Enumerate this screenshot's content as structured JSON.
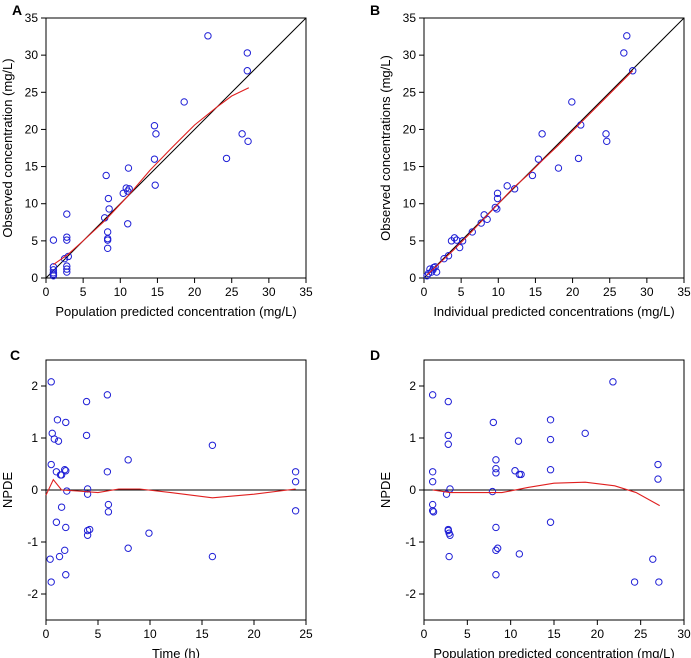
{
  "chart_data": [
    {
      "panel": "A",
      "type": "scatter",
      "xlabel": "Population predicted concentration (mg/L)",
      "ylabel": "Observed concentration (mg/L)",
      "xlim": [
        0,
        35
      ],
      "ylim": [
        0,
        35
      ],
      "xticks": [
        0,
        5,
        10,
        15,
        20,
        25,
        30,
        35
      ],
      "yticks": [
        0,
        5,
        10,
        15,
        20,
        25,
        30,
        35
      ],
      "identity_line": true,
      "points": [
        [
          1,
          5.1
        ],
        [
          1,
          1.5
        ],
        [
          1,
          1.1
        ],
        [
          1,
          0.7
        ],
        [
          1,
          0.5
        ],
        [
          1,
          0.3
        ],
        [
          2.5,
          2.6
        ],
        [
          2.8,
          8.6
        ],
        [
          2.8,
          5.5
        ],
        [
          2.8,
          5.1
        ],
        [
          2.8,
          1.6
        ],
        [
          2.8,
          1.2
        ],
        [
          2.8,
          0.8
        ],
        [
          3,
          2.9
        ],
        [
          7.9,
          8.1
        ],
        [
          8.1,
          13.8
        ],
        [
          8.3,
          6.2
        ],
        [
          8.3,
          5.3
        ],
        [
          8.3,
          5.1
        ],
        [
          8.3,
          4.0
        ],
        [
          8.4,
          10.7
        ],
        [
          8.5,
          9.3
        ],
        [
          10.4,
          11.4
        ],
        [
          10.8,
          12.1
        ],
        [
          11,
          11.7
        ],
        [
          11,
          7.3
        ],
        [
          11.1,
          14.8
        ],
        [
          11.2,
          12.0
        ],
        [
          14.6,
          20.5
        ],
        [
          14.6,
          16.0
        ],
        [
          14.7,
          12.5
        ],
        [
          14.8,
          19.4
        ],
        [
          18.6,
          23.7
        ],
        [
          21.8,
          32.6
        ],
        [
          24.3,
          16.1
        ],
        [
          26.4,
          19.4
        ],
        [
          27.1,
          30.3
        ],
        [
          27.1,
          27.9
        ],
        [
          27.2,
          18.4
        ]
      ],
      "smooth": [
        [
          1,
          1.8
        ],
        [
          3,
          3.2
        ],
        [
          5,
          5.0
        ],
        [
          8,
          7.8
        ],
        [
          11,
          11.0
        ],
        [
          14,
          14.5
        ],
        [
          17,
          17.6
        ],
        [
          20,
          20.6
        ],
        [
          23,
          23.0
        ],
        [
          25,
          24.5
        ],
        [
          27.3,
          25.6
        ]
      ]
    },
    {
      "panel": "B",
      "type": "scatter",
      "xlabel": "Individual predicted concentrations (mg/L)",
      "ylabel": "Observed concentrations (mg/L)",
      "xlim": [
        0,
        35
      ],
      "ylim": [
        0,
        35
      ],
      "xticks": [
        0,
        5,
        10,
        15,
        20,
        25,
        30,
        35
      ],
      "yticks": [
        0,
        5,
        10,
        15,
        20,
        25,
        30,
        35
      ],
      "identity_line": true,
      "points": [
        [
          0.4,
          0.3
        ],
        [
          0.6,
          0.6
        ],
        [
          0.8,
          1.2
        ],
        [
          1,
          0.8
        ],
        [
          1.2,
          1.1
        ],
        [
          1.3,
          1.4
        ],
        [
          1.5,
          1.5
        ],
        [
          1.7,
          0.8
        ],
        [
          2.7,
          2.6
        ],
        [
          3.3,
          3.0
        ],
        [
          3.7,
          5.0
        ],
        [
          4.1,
          5.4
        ],
        [
          4.4,
          5.1
        ],
        [
          4.8,
          4.1
        ],
        [
          5.2,
          5.0
        ],
        [
          6.5,
          6.2
        ],
        [
          7.7,
          7.4
        ],
        [
          8.1,
          8.5
        ],
        [
          8.5,
          7.9
        ],
        [
          9.6,
          9.5
        ],
        [
          9.8,
          9.3
        ],
        [
          9.9,
          10.7
        ],
        [
          9.9,
          11.4
        ],
        [
          11.2,
          12.4
        ],
        [
          12.2,
          12.0
        ],
        [
          14.6,
          13.8
        ],
        [
          15.4,
          16.0
        ],
        [
          15.9,
          19.4
        ],
        [
          18.1,
          14.8
        ],
        [
          19.9,
          23.7
        ],
        [
          20.8,
          16.1
        ],
        [
          21.1,
          20.6
        ],
        [
          24.5,
          19.4
        ],
        [
          24.6,
          18.4
        ],
        [
          26.9,
          30.3
        ],
        [
          27.3,
          32.6
        ],
        [
          28.1,
          27.9
        ]
      ],
      "smooth": [
        [
          0.4,
          0.4
        ],
        [
          2,
          1.9
        ],
        [
          4,
          3.8
        ],
        [
          6,
          5.8
        ],
        [
          8,
          7.9
        ],
        [
          10,
          10.0
        ],
        [
          12,
          12.1
        ],
        [
          14,
          13.9
        ],
        [
          16,
          15.9
        ],
        [
          18,
          17.8
        ],
        [
          20,
          19.8
        ],
        [
          22,
          21.8
        ],
        [
          24,
          23.8
        ],
        [
          26,
          25.8
        ],
        [
          28.1,
          27.9
        ]
      ]
    },
    {
      "panel": "C",
      "type": "scatter",
      "xlabel": "Time (h)",
      "ylabel": "NPDE",
      "xlim": [
        0,
        25
      ],
      "ylim": [
        -2.5,
        2.5
      ],
      "xticks": [
        0,
        5,
        10,
        15,
        20,
        25
      ],
      "yticks": [
        -2,
        -1,
        0,
        1,
        2
      ],
      "reference_line": 0,
      "points": [
        [
          0.5,
          2.08
        ],
        [
          0.5,
          0.49
        ],
        [
          0.4,
          -1.33
        ],
        [
          0.5,
          -1.77
        ],
        [
          0.6,
          1.09
        ],
        [
          0.8,
          0.98
        ],
        [
          1,
          0.35
        ],
        [
          1,
          -0.62
        ],
        [
          1.1,
          1.35
        ],
        [
          1.2,
          0.94
        ],
        [
          1.3,
          -1.28
        ],
        [
          1.4,
          0.29
        ],
        [
          1.5,
          0.29
        ],
        [
          1.5,
          -0.33
        ],
        [
          1.8,
          -1.16
        ],
        [
          1.8,
          0.39
        ],
        [
          1.9,
          -0.72
        ],
        [
          1.9,
          -1.63
        ],
        [
          1.9,
          1.3
        ],
        [
          1.9,
          0.37
        ],
        [
          2,
          -0.02
        ],
        [
          3.9,
          1.7
        ],
        [
          3.9,
          1.05
        ],
        [
          4,
          0.02
        ],
        [
          4,
          -0.08
        ],
        [
          4,
          -0.78
        ],
        [
          4,
          -0.87
        ],
        [
          4.2,
          -0.76
        ],
        [
          5.9,
          1.83
        ],
        [
          5.9,
          0.35
        ],
        [
          6,
          -0.28
        ],
        [
          6,
          -0.42
        ],
        [
          7.9,
          0.58
        ],
        [
          7.9,
          -1.12
        ],
        [
          9.9,
          -0.83
        ],
        [
          16,
          0.86
        ],
        [
          16,
          -1.28
        ],
        [
          24,
          0.35
        ],
        [
          24,
          0.16
        ],
        [
          24,
          -0.4
        ]
      ],
      "smooth": [
        [
          0,
          -0.1
        ],
        [
          0.7,
          0.2
        ],
        [
          1.5,
          0
        ],
        [
          3,
          -0.02
        ],
        [
          5,
          -0.05
        ],
        [
          7,
          0.02
        ],
        [
          9,
          0.02
        ],
        [
          12,
          -0.05
        ],
        [
          16,
          -0.15
        ],
        [
          20,
          -0.08
        ],
        [
          24,
          0.02
        ]
      ]
    },
    {
      "panel": "D",
      "type": "scatter",
      "xlabel": "Population predicted concentration (mg/L)",
      "ylabel": "NPDE",
      "xlim": [
        0,
        30
      ],
      "ylim": [
        -2.5,
        2.5
      ],
      "xticks": [
        0,
        5,
        10,
        15,
        20,
        25,
        30
      ],
      "yticks": [
        -2,
        -1,
        0,
        1,
        2
      ],
      "reference_line": 0,
      "points": [
        [
          1,
          1.83
        ],
        [
          1,
          0.35
        ],
        [
          1,
          0.16
        ],
        [
          1,
          -0.28
        ],
        [
          1,
          -0.4
        ],
        [
          1.1,
          -0.42
        ],
        [
          2.8,
          1.7
        ],
        [
          2.8,
          1.05
        ],
        [
          2.8,
          0.88
        ],
        [
          3,
          0.02
        ],
        [
          2.6,
          -0.08
        ],
        [
          2.8,
          -0.76
        ],
        [
          2.8,
          -0.78
        ],
        [
          2.9,
          -0.83
        ],
        [
          3,
          -0.87
        ],
        [
          2.9,
          -1.28
        ],
        [
          8,
          1.3
        ],
        [
          8.3,
          0.58
        ],
        [
          8.3,
          0.41
        ],
        [
          8.3,
          0.33
        ],
        [
          7.9,
          -0.03
        ],
        [
          8.3,
          -0.72
        ],
        [
          8.5,
          -1.12
        ],
        [
          8.3,
          -1.16
        ],
        [
          8.3,
          -1.63
        ],
        [
          10.5,
          0.37
        ],
        [
          10.9,
          0.94
        ],
        [
          11,
          0.3
        ],
        [
          11,
          -1.23
        ],
        [
          11.2,
          0.3
        ],
        [
          14.6,
          1.35
        ],
        [
          14.6,
          0.97
        ],
        [
          14.6,
          0.39
        ],
        [
          14.6,
          -0.62
        ],
        [
          18.6,
          1.09
        ],
        [
          21.8,
          2.08
        ],
        [
          24.3,
          -1.77
        ],
        [
          26.4,
          -1.33
        ],
        [
          27,
          0.49
        ],
        [
          27,
          0.21
        ],
        [
          27.1,
          -1.77
        ]
      ],
      "smooth": [
        [
          1,
          0
        ],
        [
          3,
          -0.05
        ],
        [
          6,
          -0.05
        ],
        [
          9,
          -0.05
        ],
        [
          12,
          0.05
        ],
        [
          15,
          0.13
        ],
        [
          18.6,
          0.15
        ],
        [
          22,
          0.08
        ],
        [
          24.5,
          -0.05
        ],
        [
          27.2,
          -0.3
        ]
      ]
    }
  ]
}
